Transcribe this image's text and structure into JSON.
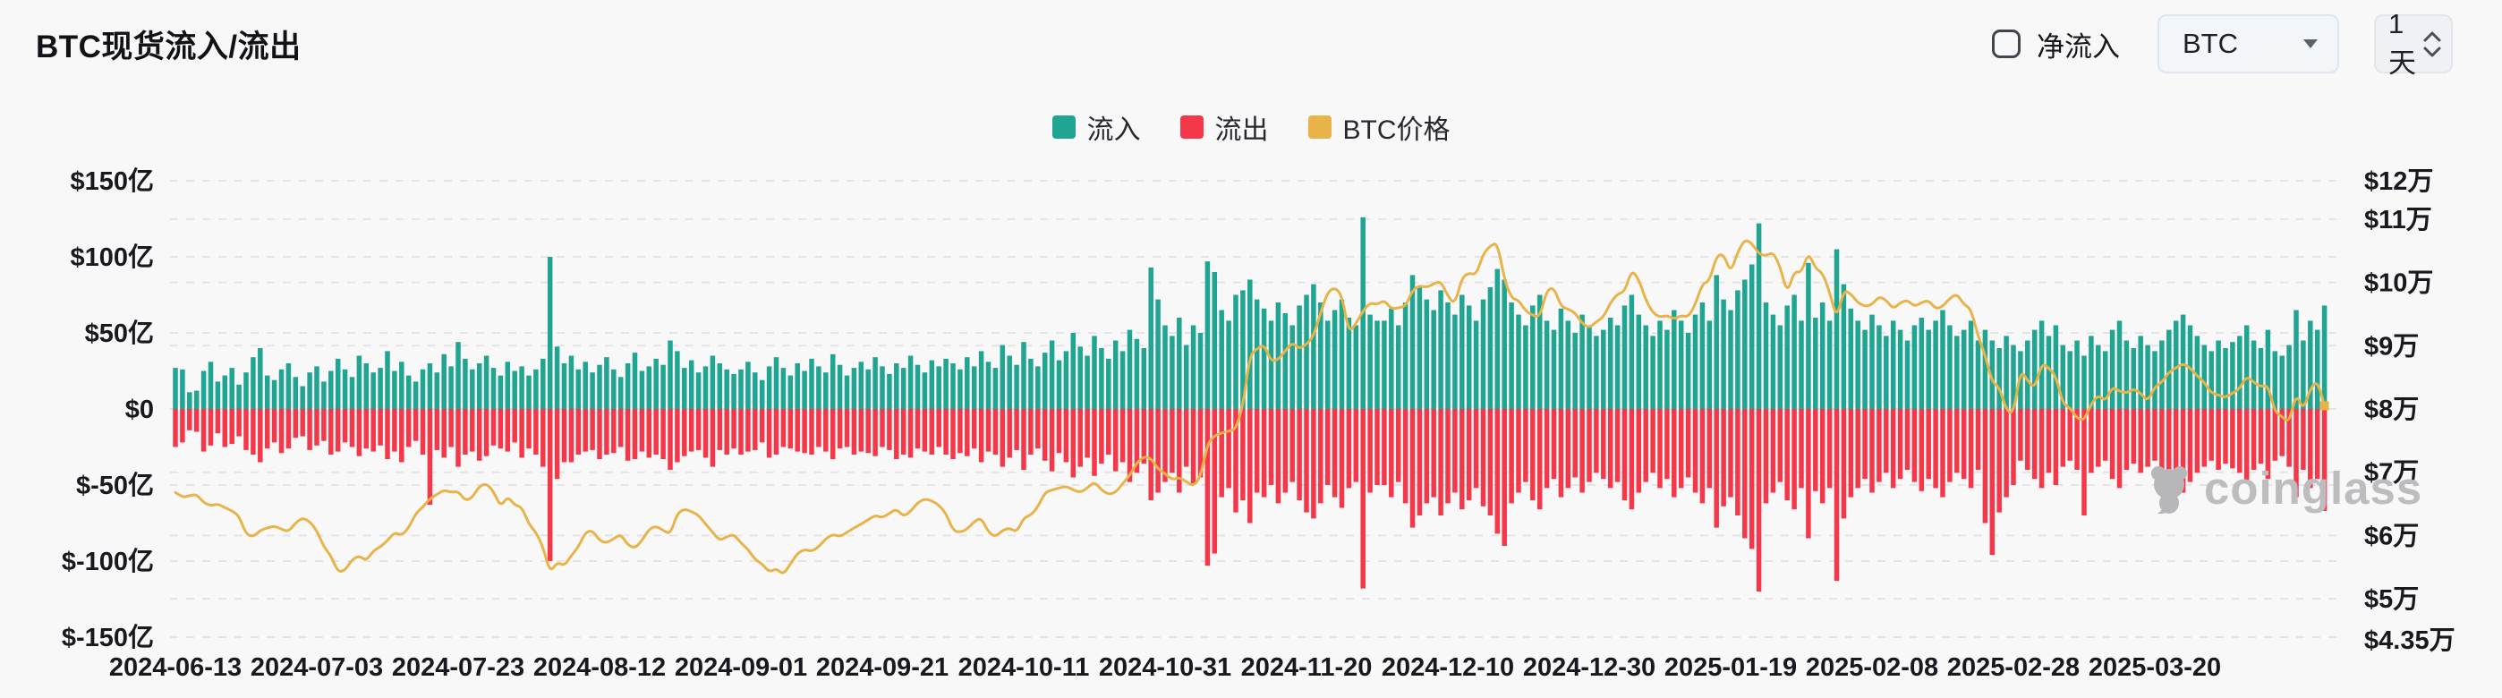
{
  "header": {
    "title": "BTC现货流入/流出"
  },
  "controls": {
    "net_inflow": {
      "label": "净流入",
      "checked": false
    },
    "coin_select": {
      "value": "BTC"
    },
    "interval_select": {
      "value": "1天"
    }
  },
  "legend": [
    {
      "label": "流入",
      "color": "#1FA592"
    },
    {
      "label": "流出",
      "color": "#F4384A"
    },
    {
      "label": "BTC价格",
      "color": "#E8B349"
    }
  ],
  "watermark": {
    "text": "coinglass"
  },
  "colors": {
    "inflow": "#1FA592",
    "outflow": "#F4384A",
    "price": "#E8B349",
    "grid": "#e4e4e7",
    "background": "#f8f8f9"
  },
  "chart_data": {
    "type": "bar",
    "note": "daily spot inflow/outflow bars (left axis, 亿 USD) + BTC price line (right axis, 万 USD)",
    "start_date": "2024-06-13",
    "end_date": "2025-04-13",
    "x_tick_every_days": 20,
    "x_tick_labels": [
      "2024-06-13",
      "2024-07-03",
      "2024-07-23",
      "2024-08-12",
      "2024-09-01",
      "2024-09-21",
      "2024-10-11",
      "2024-10-31",
      "2024-11-20",
      "2024-12-10",
      "2024-12-30",
      "2025-01-19",
      "2025-02-08",
      "2025-02-28",
      "2025-03-20"
    ],
    "left_axis": {
      "ticks": [
        "$150亿",
        "$100亿",
        "$50亿",
        "$0",
        "$-50亿",
        "$-100亿",
        "$-150亿"
      ],
      "values": [
        150,
        100,
        50,
        0,
        -50,
        -100,
        -150
      ],
      "ylim": [
        -150,
        150
      ],
      "grid": true
    },
    "right_axis": {
      "ticks": [
        "$12万",
        "$11万",
        "$10万",
        "$9万",
        "$8万",
        "$7万",
        "$6万",
        "$5万",
        "$4.35万"
      ],
      "values": [
        12,
        11,
        10,
        9,
        8,
        7,
        6,
        5,
        4.35
      ],
      "grid": true
    },
    "legend_position": "top-center",
    "series": [
      {
        "name": "流入",
        "type": "bar",
        "axis": "left",
        "color": "#1FA592",
        "values": [
          27,
          26,
          11,
          12,
          25,
          31,
          18,
          22,
          27,
          16,
          24,
          34,
          40,
          22,
          19,
          26,
          30,
          21,
          15,
          24,
          28,
          18,
          25,
          33,
          26,
          21,
          35,
          30,
          24,
          27,
          38,
          25,
          31,
          22,
          18,
          26,
          30,
          24,
          36,
          28,
          44,
          33,
          26,
          30,
          35,
          27,
          22,
          31,
          25,
          28,
          22,
          26,
          33,
          100,
          41,
          30,
          35,
          26,
          31,
          24,
          29,
          34,
          26,
          21,
          30,
          37,
          25,
          28,
          33,
          29,
          45,
          38,
          27,
          32,
          24,
          28,
          35,
          30,
          26,
          23,
          26,
          31,
          24,
          19,
          28,
          34,
          27,
          22,
          30,
          25,
          33,
          28,
          24,
          36,
          29,
          22,
          27,
          31,
          26,
          34,
          28,
          23,
          30,
          27,
          35,
          29,
          24,
          32,
          28,
          33,
          30,
          26,
          34,
          28,
          38,
          31,
          27,
          42,
          35,
          29,
          44,
          33,
          28,
          37,
          45,
          32,
          38,
          50,
          41,
          35,
          48,
          40,
          33,
          45,
          38,
          52,
          46,
          40,
          93,
          72,
          55,
          48,
          60,
          42,
          55,
          50,
          97,
          90,
          65,
          58,
          75,
          78,
          85,
          72,
          66,
          58,
          70,
          63,
          55,
          68,
          75,
          82,
          70,
          58,
          65,
          72,
          60,
          55,
          126,
          62,
          58,
          58,
          66,
          55,
          70,
          88,
          80,
          72,
          65,
          78,
          70,
          62,
          75,
          68,
          58,
          72,
          80,
          92,
          85,
          70,
          62,
          55,
          68,
          75,
          58,
          52,
          66,
          58,
          50,
          62,
          55,
          48,
          52,
          60,
          55,
          68,
          75,
          62,
          55,
          48,
          58,
          52,
          65,
          58,
          50,
          62,
          70,
          58,
          88,
          72,
          65,
          78,
          85,
          95,
          122,
          70,
          62,
          55,
          68,
          75,
          58,
          96,
          60,
          70,
          58,
          105,
          82,
          66,
          58,
          52,
          62,
          55,
          48,
          58,
          52,
          45,
          55,
          60,
          52,
          58,
          65,
          55,
          48,
          52,
          58,
          45,
          52,
          45,
          40,
          48,
          42,
          38,
          45,
          52,
          58,
          48,
          55,
          42,
          38,
          45,
          35,
          48,
          42,
          38,
          52,
          58,
          45,
          40,
          48,
          42,
          38,
          45,
          52,
          58,
          62,
          55,
          48,
          42,
          38,
          45,
          40,
          44,
          48,
          55,
          45,
          40,
          52,
          38,
          35,
          42,
          65,
          45,
          58,
          52,
          68
        ]
      },
      {
        "name": "流出",
        "type": "bar",
        "axis": "left",
        "color": "#F4384A",
        "values": [
          -25,
          -22,
          -14,
          -15,
          -28,
          -24,
          -16,
          -25,
          -23,
          -18,
          -27,
          -30,
          -35,
          -26,
          -22,
          -29,
          -26,
          -19,
          -18,
          -27,
          -24,
          -21,
          -30,
          -28,
          -22,
          -25,
          -31,
          -26,
          -28,
          -24,
          -33,
          -28,
          -35,
          -25,
          -21,
          -30,
          -63,
          -27,
          -32,
          -25,
          -38,
          -30,
          -28,
          -34,
          -31,
          -24,
          -26,
          -28,
          -22,
          -32,
          -26,
          -30,
          -38,
          -100,
          -46,
          -35,
          -35,
          -30,
          -28,
          -27,
          -33,
          -30,
          -29,
          -25,
          -34,
          -33,
          -28,
          -32,
          -30,
          -33,
          -40,
          -35,
          -31,
          -28,
          -27,
          -32,
          -38,
          -27,
          -30,
          -26,
          -30,
          -28,
          -27,
          -22,
          -32,
          -30,
          -25,
          -26,
          -28,
          -29,
          -30,
          -25,
          -28,
          -33,
          -26,
          -25,
          -30,
          -28,
          -29,
          -31,
          -25,
          -27,
          -33,
          -30,
          -32,
          -26,
          -28,
          -30,
          -25,
          -30,
          -33,
          -29,
          -31,
          -26,
          -35,
          -28,
          -30,
          -38,
          -32,
          -27,
          -40,
          -30,
          -26,
          -34,
          -41,
          -29,
          -35,
          -45,
          -38,
          -32,
          -44,
          -36,
          -30,
          -41,
          -35,
          -48,
          -42,
          -36,
          -60,
          -55,
          -48,
          -42,
          -55,
          -38,
          -50,
          -45,
          -103,
          -95,
          -58,
          -52,
          -68,
          -60,
          -75,
          -55,
          -58,
          -50,
          -62,
          -55,
          -48,
          -60,
          -68,
          -72,
          -62,
          -50,
          -58,
          -65,
          -52,
          -48,
          -118,
          -55,
          -50,
          -50,
          -58,
          -48,
          -62,
          -78,
          -70,
          -62,
          -58,
          -70,
          -62,
          -55,
          -66,
          -60,
          -52,
          -64,
          -70,
          -82,
          -90,
          -62,
          -55,
          -48,
          -60,
          -66,
          -52,
          -46,
          -58,
          -52,
          -45,
          -55,
          -48,
          -42,
          -46,
          -52,
          -48,
          -60,
          -66,
          -55,
          -48,
          -42,
          -52,
          -46,
          -58,
          -52,
          -45,
          -55,
          -62,
          -52,
          -78,
          -64,
          -58,
          -70,
          -85,
          -92,
          -120,
          -62,
          -55,
          -48,
          -60,
          -66,
          -52,
          -85,
          -54,
          -62,
          -52,
          -113,
          -72,
          -58,
          -52,
          -46,
          -55,
          -48,
          -42,
          -52,
          -46,
          -40,
          -48,
          -54,
          -46,
          -52,
          -58,
          -48,
          -42,
          -46,
          -52,
          -40,
          -75,
          -96,
          -68,
          -58,
          -50,
          -34,
          -40,
          -46,
          -52,
          -42,
          -50,
          -38,
          -34,
          -40,
          -70,
          -42,
          -38,
          -34,
          -46,
          -52,
          -40,
          -36,
          -42,
          -38,
          -34,
          -40,
          -46,
          -52,
          -55,
          -48,
          -42,
          -38,
          -34,
          -40,
          -36,
          -39,
          -42,
          -48,
          -40,
          -36,
          -46,
          -34,
          -31,
          -38,
          -58,
          -40,
          -52,
          -46,
          -67
        ]
      },
      {
        "name": "BTC价格",
        "type": "line",
        "axis": "right",
        "color": "#E8B349",
        "values": [
          6.68,
          6.6,
          6.63,
          6.65,
          6.52,
          6.47,
          6.5,
          6.44,
          6.39,
          6.31,
          6.02,
          5.98,
          6.08,
          6.12,
          6.15,
          6.1,
          6.06,
          6.2,
          6.28,
          6.22,
          6.08,
          5.82,
          5.68,
          5.42,
          5.45,
          5.62,
          5.68,
          5.6,
          5.76,
          5.82,
          5.92,
          6.05,
          6.0,
          6.12,
          6.35,
          6.45,
          6.58,
          6.65,
          6.72,
          6.68,
          6.7,
          6.55,
          6.6,
          6.78,
          6.82,
          6.7,
          6.45,
          6.62,
          6.48,
          6.45,
          6.18,
          6.05,
          5.82,
          5.41,
          5.58,
          5.52,
          5.68,
          5.82,
          6.05,
          6.08,
          5.92,
          5.88,
          5.95,
          6.02,
          5.85,
          5.8,
          5.92,
          6.1,
          6.15,
          6.08,
          6.02,
          6.35,
          6.42,
          6.38,
          6.32,
          6.18,
          6.05,
          5.92,
          5.98,
          6.02,
          5.88,
          5.78,
          5.62,
          5.55,
          5.42,
          5.48,
          5.38,
          5.55,
          5.72,
          5.78,
          5.75,
          5.82,
          5.95,
          6.02,
          5.98,
          6.05,
          6.12,
          6.18,
          6.25,
          6.32,
          6.28,
          6.35,
          6.42,
          6.3,
          6.38,
          6.52,
          6.58,
          6.55,
          6.48,
          6.35,
          6.08,
          6.05,
          6.1,
          6.22,
          6.28,
          6.05,
          5.98,
          6.08,
          6.12,
          6.05,
          6.28,
          6.32,
          6.45,
          6.68,
          6.72,
          6.75,
          6.78,
          6.72,
          6.68,
          6.75,
          6.85,
          6.72,
          6.65,
          6.68,
          6.82,
          6.95,
          7.15,
          7.25,
          7.22,
          7.05,
          6.98,
          6.88,
          6.92,
          6.85,
          6.78,
          6.92,
          7.45,
          7.58,
          7.62,
          7.65,
          7.68,
          8.05,
          8.85,
          8.95,
          9.02,
          8.75,
          8.78,
          8.92,
          9.05,
          8.95,
          9.02,
          9.15,
          9.52,
          9.85,
          9.92,
          9.8,
          9.2,
          9.35,
          9.55,
          9.68,
          9.65,
          9.72,
          9.58,
          9.6,
          9.62,
          9.88,
          9.95,
          9.92,
          9.98,
          10.02,
          9.78,
          9.65,
          10.08,
          10.15,
          10.12,
          10.45,
          10.58,
          10.63,
          10.05,
          9.75,
          9.72,
          9.55,
          9.48,
          9.45,
          9.88,
          9.92,
          9.62,
          9.58,
          9.52,
          9.35,
          9.28,
          9.38,
          9.45,
          9.68,
          9.82,
          9.85,
          10.2,
          10.05,
          9.72,
          9.52,
          9.45,
          9.48,
          9.42,
          9.48,
          9.45,
          9.65,
          9.98,
          10.02,
          10.42,
          10.45,
          10.15,
          10.48,
          10.68,
          10.62,
          10.45,
          10.42,
          10.48,
          10.25,
          9.82,
          10.18,
          10.15,
          10.48,
          10.22,
          10.15,
          9.85,
          9.42,
          9.88,
          9.82,
          9.68,
          9.62,
          9.65,
          9.78,
          9.72,
          9.58,
          9.68,
          9.72,
          9.62,
          9.68,
          9.72,
          9.58,
          9.62,
          9.75,
          9.82,
          9.65,
          9.58,
          9.15,
          8.85,
          8.42,
          8.35,
          7.98,
          7.92,
          8.62,
          8.45,
          8.32,
          8.72,
          8.65,
          8.52,
          8.08,
          8.02,
          7.85,
          7.82,
          8.08,
          8.22,
          8.12,
          8.35,
          8.28,
          8.25,
          8.32,
          8.25,
          8.12,
          8.35,
          8.42,
          8.58,
          8.65,
          8.72,
          8.65,
          8.52,
          8.42,
          8.25,
          8.22,
          8.18,
          8.25,
          8.32,
          8.52,
          8.42,
          8.35,
          8.38,
          7.95,
          7.88,
          7.78,
          8.25,
          7.98,
          8.32,
          8.45,
          8.05
        ]
      }
    ]
  }
}
